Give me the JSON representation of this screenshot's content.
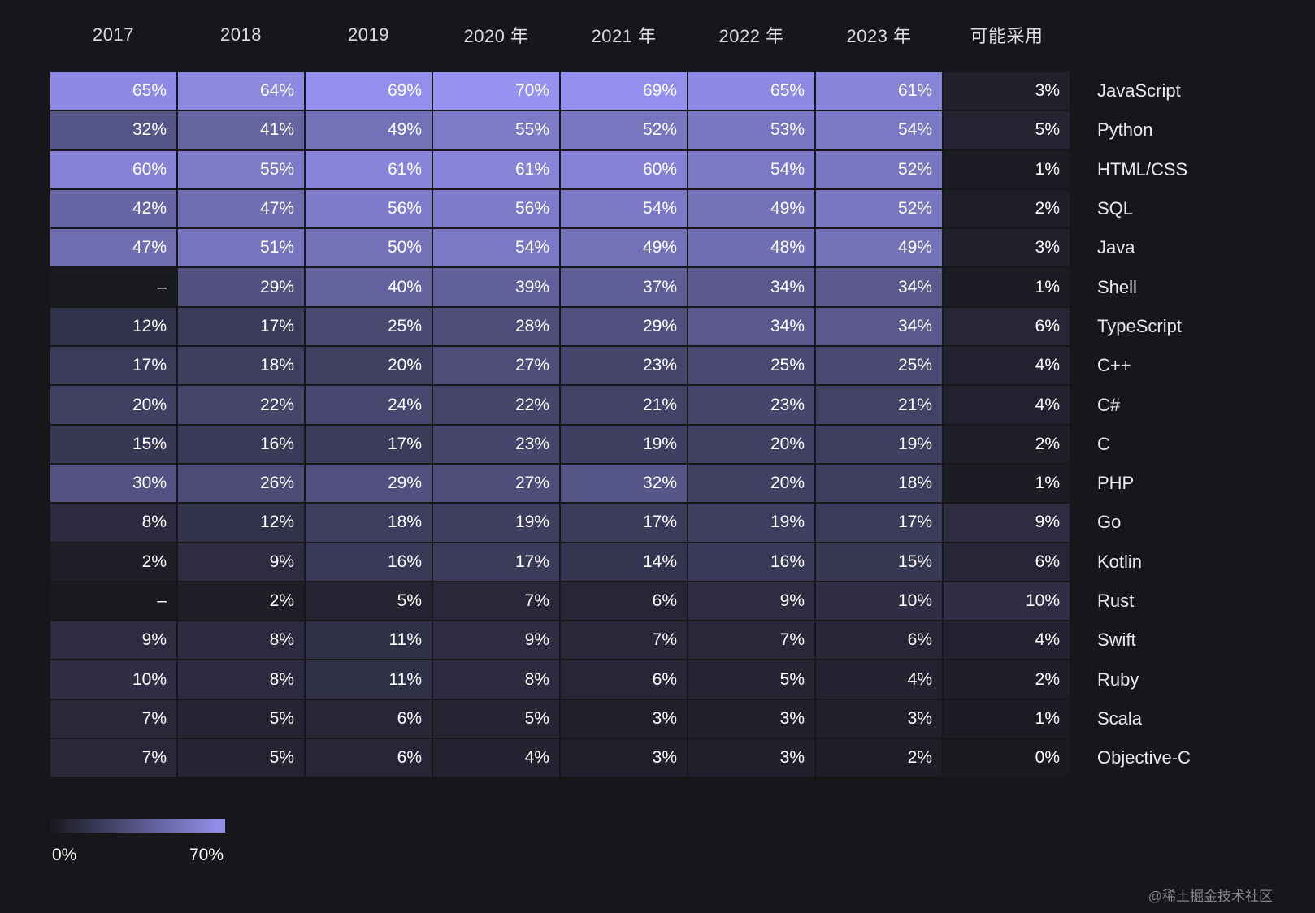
{
  "chart_data": {
    "type": "heatmap",
    "title": "",
    "columns": [
      "2017",
      "2018",
      "2019",
      "2020 年",
      "2021 年",
      "2022 年",
      "2023 年",
      "可能采用"
    ],
    "rows": [
      {
        "language": "JavaScript",
        "values": [
          65,
          64,
          69,
          70,
          69,
          65,
          61,
          3
        ]
      },
      {
        "language": "Python",
        "values": [
          32,
          41,
          49,
          55,
          52,
          53,
          54,
          5
        ]
      },
      {
        "language": "HTML/CSS",
        "values": [
          60,
          55,
          61,
          61,
          60,
          54,
          52,
          1
        ]
      },
      {
        "language": "SQL",
        "values": [
          42,
          47,
          56,
          56,
          54,
          49,
          52,
          2
        ]
      },
      {
        "language": "Java",
        "values": [
          47,
          51,
          50,
          54,
          49,
          48,
          49,
          3
        ]
      },
      {
        "language": "Shell",
        "values": [
          null,
          29,
          40,
          39,
          37,
          34,
          34,
          1
        ]
      },
      {
        "language": "TypeScript",
        "values": [
          12,
          17,
          25,
          28,
          29,
          34,
          34,
          6
        ]
      },
      {
        "language": "C++",
        "values": [
          17,
          18,
          20,
          27,
          23,
          25,
          25,
          4
        ]
      },
      {
        "language": "C#",
        "values": [
          20,
          22,
          24,
          22,
          21,
          23,
          21,
          4
        ]
      },
      {
        "language": "C",
        "values": [
          15,
          16,
          17,
          23,
          19,
          20,
          19,
          2
        ]
      },
      {
        "language": "PHP",
        "values": [
          30,
          26,
          29,
          27,
          32,
          20,
          18,
          1
        ]
      },
      {
        "language": "Go",
        "values": [
          8,
          12,
          18,
          19,
          17,
          19,
          17,
          9
        ]
      },
      {
        "language": "Kotlin",
        "values": [
          2,
          9,
          16,
          17,
          14,
          16,
          15,
          6
        ]
      },
      {
        "language": "Rust",
        "values": [
          null,
          2,
          5,
          7,
          6,
          9,
          10,
          10
        ]
      },
      {
        "language": "Swift",
        "values": [
          9,
          8,
          11,
          9,
          7,
          7,
          6,
          4
        ]
      },
      {
        "language": "Ruby",
        "values": [
          10,
          8,
          11,
          8,
          6,
          5,
          4,
          2
        ]
      },
      {
        "language": "Scala",
        "values": [
          7,
          5,
          6,
          5,
          3,
          3,
          3,
          1
        ]
      },
      {
        "language": "Objective-C",
        "values": [
          7,
          5,
          6,
          4,
          3,
          3,
          2,
          0
        ]
      }
    ],
    "value_suffix": "%",
    "null_display": "–",
    "color_scale": {
      "min": 0,
      "max": 70,
      "low": "#191920",
      "high": "#9592f0",
      "gamma": 0.9
    },
    "legend": {
      "min_label": "0%",
      "max_label": "70%"
    }
  },
  "watermark": "@稀土掘金技术社区"
}
